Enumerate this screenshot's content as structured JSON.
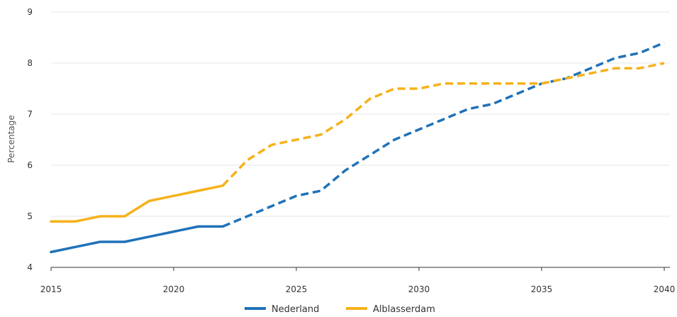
{
  "chart_data": {
    "type": "line",
    "title": "",
    "xlabel": "",
    "ylabel": "Percentage",
    "xlim": [
      2015,
      2040
    ],
    "ylim": [
      4,
      9
    ],
    "x_ticks": [
      "2015",
      "2020",
      "2025",
      "2030",
      "2035",
      "2040"
    ],
    "y_ticks": [
      "4",
      "5",
      "6",
      "7",
      "8",
      "9"
    ],
    "grid": "horizontal",
    "legend_position": "bottom-center",
    "solid_until": 2022,
    "x": [
      2015,
      2016,
      2017,
      2018,
      2019,
      2020,
      2021,
      2022,
      2023,
      2024,
      2025,
      2026,
      2027,
      2028,
      2029,
      2030,
      2031,
      2032,
      2033,
      2034,
      2035,
      2036,
      2037,
      2038,
      2039,
      2040
    ],
    "series": [
      {
        "name": "Nederland",
        "color": "#1f72b8",
        "values": [
          4.3,
          4.4,
          4.5,
          4.5,
          4.6,
          4.7,
          4.8,
          4.8,
          5.0,
          5.2,
          5.4,
          5.5,
          5.9,
          6.2,
          6.5,
          6.7,
          6.9,
          7.1,
          7.2,
          7.4,
          7.6,
          7.7,
          7.9,
          8.1,
          8.2,
          8.4
        ]
      },
      {
        "name": "Alblasserdam",
        "color": "#f5b21b",
        "values": [
          4.9,
          4.9,
          5.0,
          5.0,
          5.3,
          5.4,
          5.5,
          5.6,
          6.1,
          6.4,
          6.5,
          6.6,
          6.9,
          7.3,
          7.5,
          7.5,
          7.6,
          7.6,
          7.6,
          7.6,
          7.6,
          7.7,
          7.8,
          7.9,
          7.9,
          8.0
        ]
      }
    ]
  }
}
